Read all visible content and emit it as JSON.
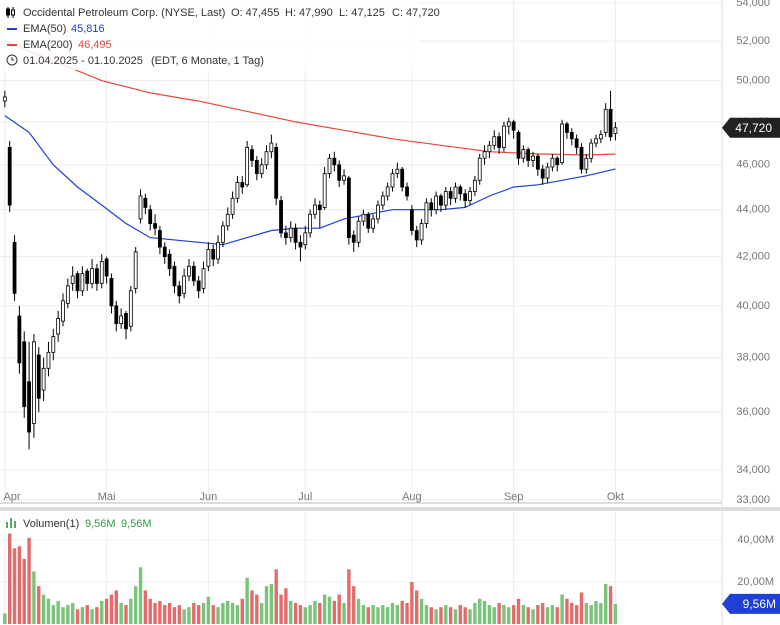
{
  "chart_data": [
    {
      "type": "candlestick",
      "title": "Occidental Petroleum Corp. (NYSE, Last)",
      "quote": [
        "O: 47,455",
        "H: 47,990",
        "L: 47,125",
        "C: 47,720"
      ],
      "period": "01.04.2025 - 01.10.2025",
      "period_note": "(EDT, 6 Monate, 1 Tag)",
      "open": [
        49.0,
        46.8,
        42.6,
        39.6,
        38.6,
        37.1,
        35.6,
        38.1,
        36.8,
        37.6,
        38.2,
        38.9,
        39.4,
        40.1,
        40.9,
        41.3,
        40.6,
        41.4,
        40.9,
        41.5,
        40.9,
        41.9,
        41.1,
        40.0,
        39.3,
        39.7,
        39.2,
        40.7,
        43.6,
        44.5,
        44.0,
        43.4,
        43.1,
        42.4,
        42.1,
        41.6,
        40.8,
        40.5,
        41.2,
        41.6,
        41.0,
        40.7,
        41.6,
        42.3,
        41.9,
        42.6,
        43.3,
        43.8,
        44.5,
        45.2,
        45.1,
        46.7,
        46.2,
        45.6,
        46.0,
        46.6,
        46.8,
        44.4,
        43.0,
        42.8,
        43.2,
        42.6,
        42.5,
        43.0,
        43.8,
        44.2,
        44.1,
        45.6,
        46.3,
        46.0,
        45.3,
        45.4,
        42.9,
        42.6,
        43.5,
        43.8,
        43.2,
        43.6,
        44.2,
        44.6,
        45.0,
        45.6,
        45.8,
        45.0,
        44.0,
        43.1,
        42.7,
        43.4,
        44.3,
        44.0,
        44.6,
        44.2,
        44.8,
        44.5,
        45.0,
        44.7,
        44.4,
        44.8,
        45.3,
        46.3,
        46.6,
        46.9,
        47.3,
        46.8,
        47.8,
        48.0,
        47.5,
        46.3,
        46.7,
        46.2,
        46.4,
        45.8,
        45.4,
        45.9,
        46.3,
        46.1,
        47.9,
        47.5,
        47.2,
        46.8,
        45.8,
        46.3,
        47.0,
        47.2,
        47.5,
        48.6,
        47.455
      ],
      "high": [
        49.5,
        47.1,
        42.9,
        40.0,
        39.0,
        38.6,
        38.9,
        38.4,
        38.0,
        38.6,
        39.1,
        39.8,
        40.5,
        41.1,
        41.6,
        41.4,
        41.6,
        41.5,
        41.9,
        41.7,
        42.1,
        42.0,
        41.3,
        40.2,
        39.9,
        39.8,
        40.8,
        42.4,
        44.9,
        44.7,
        44.2,
        43.8,
        43.3,
        42.6,
        42.3,
        41.8,
        41.0,
        41.5,
        41.9,
        41.8,
        41.2,
        41.8,
        42.6,
        42.5,
        42.9,
        43.5,
        44.1,
        44.8,
        45.5,
        45.5,
        47.1,
        46.9,
        46.4,
        46.3,
        46.9,
        47.4,
        47.0,
        44.6,
        43.3,
        43.5,
        43.4,
        42.9,
        43.3,
        44.0,
        44.5,
        44.4,
        45.9,
        46.5,
        46.6,
        46.2,
        45.8,
        45.5,
        43.1,
        43.7,
        44.0,
        43.9,
        43.8,
        44.4,
        44.8,
        45.2,
        45.8,
        46.1,
        45.9,
        45.2,
        44.2,
        43.3,
        43.6,
        44.5,
        44.5,
        44.8,
        44.7,
        45.0,
        45.0,
        45.2,
        45.1,
        44.9,
        45.0,
        45.5,
        46.5,
        46.9,
        47.1,
        47.6,
        47.5,
        48.0,
        48.2,
        48.1,
        47.6,
        46.9,
        46.8,
        46.6,
        46.5,
        46.0,
        46.1,
        46.5,
        46.4,
        48.1,
        48.0,
        47.7,
        47.4,
        47.0,
        46.5,
        47.2,
        47.4,
        47.6,
        48.9,
        49.5,
        47.99
      ],
      "low": [
        48.7,
        43.9,
        40.2,
        37.4,
        35.8,
        34.7,
        35.1,
        36.0,
        36.4,
        37.3,
        37.9,
        38.6,
        39.2,
        39.9,
        40.6,
        40.3,
        40.4,
        40.6,
        40.7,
        40.6,
        40.7,
        40.9,
        39.7,
        39.0,
        39.1,
        38.7,
        39.0,
        40.5,
        43.4,
        43.8,
        43.1,
        42.9,
        42.1,
        41.7,
        41.2,
        40.5,
        40.1,
        40.3,
        41.0,
        40.8,
        40.3,
        40.5,
        41.4,
        41.6,
        41.7,
        42.4,
        43.1,
        43.6,
        44.3,
        44.7,
        45.0,
        45.9,
        45.3,
        45.4,
        45.8,
        46.3,
        44.2,
        42.8,
        42.5,
        42.6,
        42.3,
        41.8,
        42.3,
        42.8,
        43.6,
        43.2,
        44.0,
        45.4,
        45.7,
        45.0,
        45.1,
        42.5,
        42.2,
        42.4,
        43.3,
        43.0,
        43.0,
        43.4,
        44.0,
        44.4,
        44.8,
        45.4,
        44.8,
        44.4,
        42.9,
        42.4,
        42.5,
        43.2,
        43.7,
        43.8,
        43.9,
        44.0,
        44.2,
        44.3,
        44.4,
        44.1,
        44.2,
        44.6,
        45.1,
        46.0,
        46.3,
        46.7,
        46.5,
        46.6,
        47.4,
        47.2,
        46.0,
        46.1,
        45.9,
        45.9,
        45.5,
        45.1,
        45.2,
        45.7,
        45.7,
        46.0,
        47.2,
        46.9,
        46.5,
        45.6,
        45.6,
        46.1,
        46.8,
        47.0,
        47.3,
        47.1,
        47.125
      ],
      "close": [
        49.2,
        44.2,
        40.5,
        37.8,
        36.2,
        35.3,
        38.6,
        36.5,
        37.6,
        38.2,
        38.8,
        39.5,
        40.2,
        40.8,
        41.2,
        40.6,
        41.3,
        40.9,
        41.5,
        40.9,
        41.8,
        41.2,
        40.0,
        39.3,
        39.6,
        39.1,
        40.6,
        42.2,
        44.6,
        44.1,
        43.4,
        43.2,
        42.4,
        42.0,
        41.5,
        40.8,
        40.4,
        41.2,
        41.6,
        41.0,
        40.6,
        41.5,
        42.3,
        41.9,
        42.6,
        43.3,
        43.8,
        44.5,
        45.2,
        45.0,
        46.8,
        46.2,
        45.6,
        46.0,
        46.6,
        47.0,
        44.5,
        43.0,
        42.8,
        43.2,
        42.6,
        42.4,
        43.0,
        43.8,
        44.2,
        44.0,
        45.6,
        46.3,
        46.0,
        45.3,
        45.5,
        42.8,
        42.6,
        43.5,
        43.8,
        43.2,
        43.6,
        44.2,
        44.6,
        45.0,
        45.6,
        45.8,
        45.0,
        44.6,
        43.1,
        42.7,
        43.4,
        44.3,
        44.0,
        44.6,
        44.2,
        44.8,
        44.5,
        45.0,
        44.7,
        44.4,
        44.8,
        45.3,
        46.3,
        46.6,
        46.9,
        47.3,
        46.8,
        47.8,
        48.0,
        47.6,
        46.3,
        46.7,
        46.2,
        46.4,
        45.8,
        45.4,
        45.9,
        46.3,
        46.0,
        47.9,
        47.5,
        47.2,
        46.8,
        45.8,
        46.3,
        47.0,
        47.2,
        47.4,
        48.6,
        47.3,
        47.72
      ],
      "up_color": "#ffffff",
      "down_color": "#000000",
      "lines": [
        {
          "name": "EMA(50)",
          "value_label": "45,816",
          "color": "#1f3fd6",
          "x": [
            0,
            5,
            10,
            15,
            20,
            25,
            30,
            40,
            45,
            50,
            55,
            60,
            65,
            70,
            75,
            80,
            85,
            90,
            95,
            100,
            105,
            110,
            115,
            120,
            126
          ],
          "values": [
            48.3,
            47.5,
            46.0,
            45.0,
            44.2,
            43.4,
            42.8,
            42.6,
            42.5,
            42.8,
            43.1,
            43.2,
            43.2,
            43.6,
            43.8,
            44.0,
            44.0,
            44.0,
            44.1,
            44.6,
            45.0,
            45.1,
            45.3,
            45.5,
            45.816
          ]
        },
        {
          "name": "EMA(200)",
          "value_label": "46,495",
          "color": "#e8463c",
          "x": [
            0,
            10,
            20,
            30,
            40,
            50,
            60,
            70,
            80,
            90,
            100,
            110,
            120,
            126
          ],
          "values": [
            52.0,
            51.0,
            50.0,
            49.4,
            49.0,
            48.5,
            48.0,
            47.6,
            47.2,
            46.9,
            46.6,
            46.5,
            46.45,
            46.495
          ]
        }
      ],
      "last_label": "47,720",
      "log": true,
      "grid": true,
      "ylim": [
        33,
        54
      ],
      "yticks": [
        {
          "value": 33,
          "label": "33,000"
        },
        {
          "value": 34,
          "label": "34,000"
        },
        {
          "value": 36,
          "label": "36,000"
        },
        {
          "value": 38,
          "label": "38,000"
        },
        {
          "value": 40,
          "label": "40,000"
        },
        {
          "value": 42,
          "label": "42,000"
        },
        {
          "value": 44,
          "label": "44,000"
        },
        {
          "value": 46,
          "label": "46,000"
        },
        {
          "value": 48,
          "label": "48,000"
        },
        {
          "value": 50,
          "label": "50,000"
        },
        {
          "value": 52,
          "label": "52,000"
        },
        {
          "value": 54,
          "label": "54,000"
        }
      ],
      "xlim": [
        -1,
        148
      ],
      "xticks": [
        {
          "value": 0,
          "label": "Apr"
        },
        {
          "value": 21,
          "label": "Mai"
        },
        {
          "value": 42,
          "label": "Jun"
        },
        {
          "value": 62,
          "label": "Jul"
        },
        {
          "value": 84,
          "label": "Aug"
        },
        {
          "value": 105,
          "label": "Sep"
        },
        {
          "value": 126,
          "label": "Okt"
        }
      ]
    },
    {
      "type": "bar",
      "title": "Volumen(1)",
      "legend_values": [
        "9,56M",
        "9,56M"
      ],
      "values": [
        5,
        43,
        36,
        37,
        31,
        41,
        25,
        18,
        14,
        12,
        9,
        11,
        8,
        9,
        10,
        7,
        8,
        9,
        7,
        8,
        11,
        12,
        14,
        16,
        10,
        9,
        12,
        18,
        27,
        16,
        12,
        10,
        11,
        9,
        10,
        8,
        9,
        7,
        8,
        10,
        9,
        10,
        13,
        9,
        8,
        10,
        11,
        10,
        9,
        12,
        22,
        16,
        14,
        10,
        18,
        19,
        26,
        14,
        17,
        11,
        10,
        9,
        8,
        9,
        11,
        10,
        14,
        13,
        11,
        14,
        10,
        26,
        18,
        12,
        9,
        8,
        9,
        8,
        9,
        8,
        10,
        9,
        11,
        10,
        20,
        16,
        12,
        9,
        8,
        7,
        8,
        9,
        8,
        7,
        9,
        8,
        7,
        10,
        12,
        11,
        9,
        8,
        10,
        9,
        8,
        9,
        12,
        9,
        8,
        7,
        9,
        10,
        8,
        9,
        8,
        14,
        12,
        10,
        9,
        15,
        10,
        9,
        11,
        10,
        19,
        18,
        9.56
      ],
      "up_color": "#79c37a",
      "down_color": "#e36b6b",
      "last_label": "9,56M",
      "grid": true,
      "ylim": [
        0,
        53.3
      ],
      "yticks": [
        {
          "value": 20,
          "label": "20,00M"
        },
        {
          "value": 40,
          "label": "40,00M"
        }
      ]
    }
  ]
}
